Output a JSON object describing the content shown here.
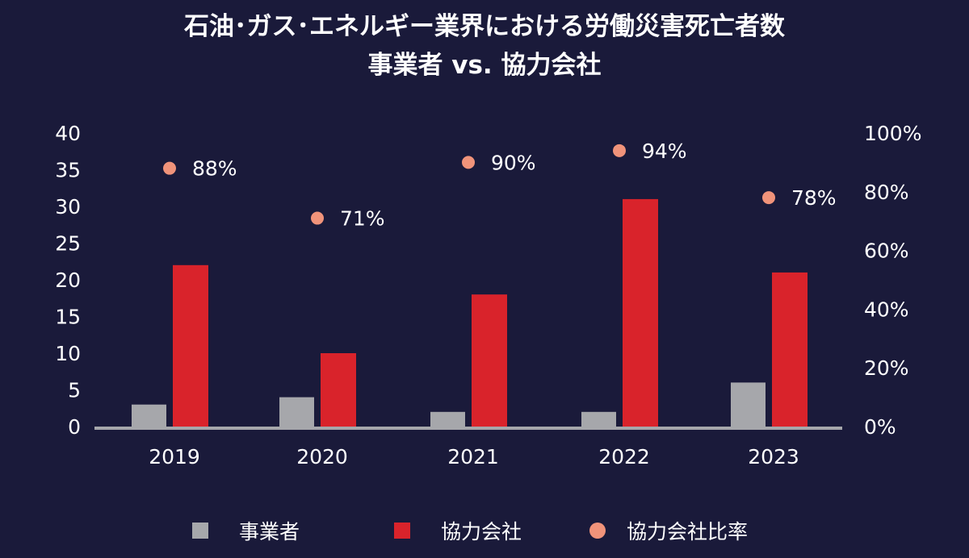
{
  "chart_data": {
    "type": "bar",
    "title": "石油･ガス･エネルギー業界における労働災害死亡者数",
    "subtitle": "事業者 vs. 協力会社",
    "categories": [
      "2019",
      "2020",
      "2021",
      "2022",
      "2023"
    ],
    "series": [
      {
        "name": "事業者",
        "type": "bar",
        "axis": "left",
        "color": "#a6a7ab",
        "values": [
          3,
          4,
          2,
          2,
          6
        ]
      },
      {
        "name": "協力会社",
        "type": "bar",
        "axis": "left",
        "color": "#d9232b",
        "values": [
          22,
          10,
          18,
          31,
          21
        ]
      },
      {
        "name": "協力会社比率",
        "type": "scatter",
        "axis": "right",
        "color": "#f0937a",
        "values": [
          88,
          71,
          90,
          94,
          78
        ],
        "labels": [
          "88%",
          "71%",
          "90%",
          "94%",
          "78%"
        ]
      }
    ],
    "y_left": {
      "min": 0,
      "max": 40,
      "ticks": [
        "0",
        "5",
        "10",
        "15",
        "20",
        "25",
        "30",
        "35",
        "40"
      ]
    },
    "y_right": {
      "min": 0,
      "max": 100,
      "ticks": [
        "0%",
        "20%",
        "40%",
        "60%",
        "80%",
        "100%"
      ]
    },
    "grid": false,
    "legend": "bottom"
  }
}
